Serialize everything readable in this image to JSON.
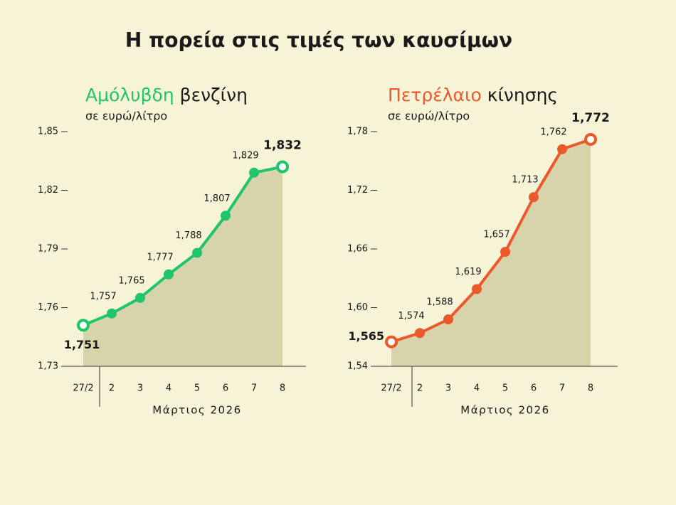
{
  "title": "Η πορεία στις τιμές των καυσίμων",
  "chart_data": [
    {
      "type": "line",
      "title": {
        "highlight": "Αμόλυβδη",
        "rest": "βενζίνη"
      },
      "subtitle": "σε ευρώ/λίτρο",
      "x_label": "Μάρτιος 2026",
      "categories": [
        "27/2",
        "2",
        "3",
        "4",
        "5",
        "6",
        "7",
        "8"
      ],
      "values": [
        1.751,
        1.757,
        1.765,
        1.777,
        1.788,
        1.807,
        1.829,
        1.832
      ],
      "value_labels": [
        "1,751",
        "1,757",
        "1,765",
        "1,777",
        "1,788",
        "1,807",
        "1,829",
        "1,832"
      ],
      "color": "#1fc46b",
      "ylim": [
        1.73,
        1.85
      ],
      "yticks": [
        {
          "value": 1.73,
          "label": "1,73"
        },
        {
          "value": 1.76,
          "label": "1,76"
        },
        {
          "value": 1.79,
          "label": "1,79"
        },
        {
          "value": 1.82,
          "label": "1,82"
        },
        {
          "value": 1.85,
          "label": "1,85"
        }
      ]
    },
    {
      "type": "line",
      "title": {
        "highlight": "Πετρέλαιο",
        "rest": "κίνησης"
      },
      "subtitle": "σε ευρώ/λίτρο",
      "x_label": "Μάρτιος 2026",
      "categories": [
        "27/2",
        "2",
        "3",
        "4",
        "5",
        "6",
        "7",
        "8"
      ],
      "values": [
        1.565,
        1.574,
        1.588,
        1.619,
        1.657,
        1.713,
        1.762,
        1.772
      ],
      "value_labels": [
        "1,565",
        "1,574",
        "1,588",
        "1,619",
        "1,657",
        "1,713",
        "1,762",
        "1,772"
      ],
      "color": "#e9592b",
      "ylim": [
        1.54,
        1.78
      ],
      "yticks": [
        {
          "value": 1.54,
          "label": "1,54"
        },
        {
          "value": 1.6,
          "label": "1,60"
        },
        {
          "value": 1.66,
          "label": "1,66"
        },
        {
          "value": 1.72,
          "label": "1,72"
        },
        {
          "value": 1.78,
          "label": "1,78"
        }
      ]
    }
  ]
}
